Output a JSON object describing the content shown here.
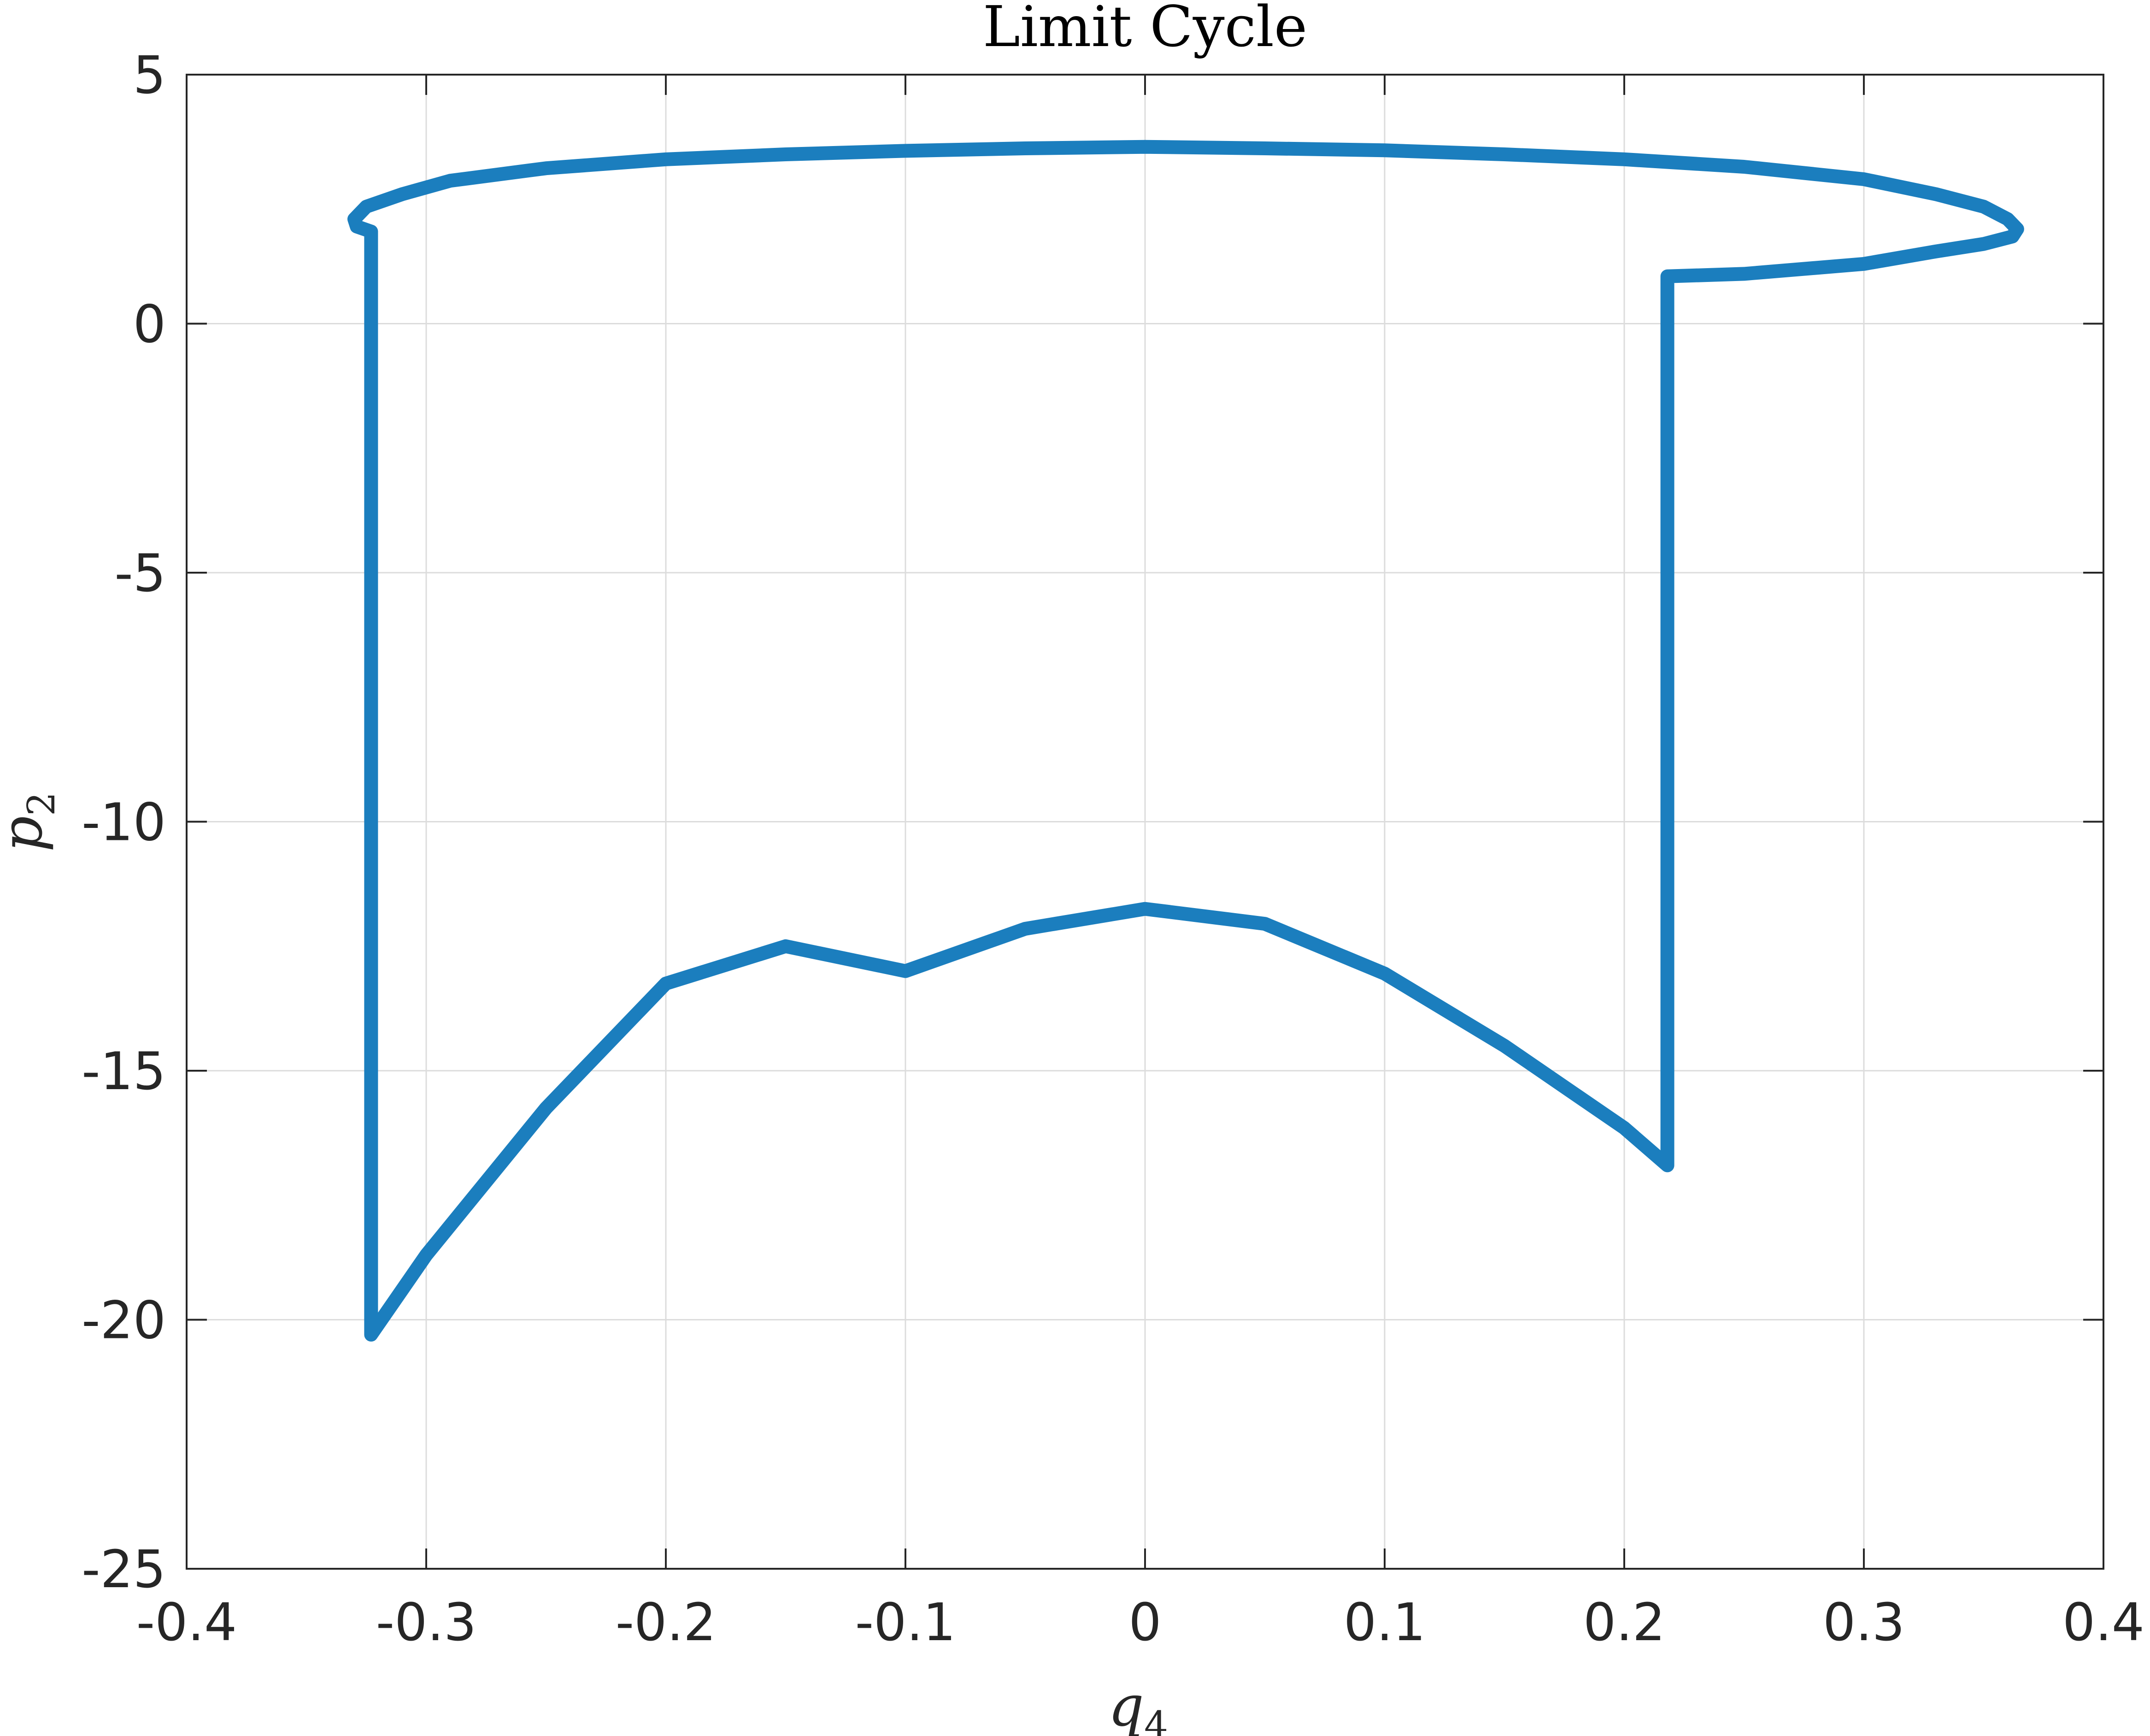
{
  "chart_data": {
    "type": "line",
    "title": "Limit Cycle",
    "xlabel": "q",
    "xlabel_subscript": "4",
    "ylabel": "p",
    "ylabel_subscript": "2",
    "xlim": [
      -0.4,
      0.4
    ],
    "ylim": [
      -25,
      5
    ],
    "xticks": [
      -0.4,
      -0.3,
      -0.2,
      -0.1,
      0,
      0.1,
      0.2,
      0.3,
      0.4
    ],
    "xtick_labels": [
      "-0.4",
      "-0.3",
      "-0.2",
      "-0.1",
      "0",
      "0.1",
      "0.2",
      "0.3",
      "0.4"
    ],
    "yticks": [
      5,
      0,
      -5,
      -10,
      -15,
      -20,
      -25
    ],
    "ytick_labels": [
      "5",
      "0",
      "-5",
      "-10",
      "-15",
      "-20",
      "-25"
    ],
    "grid": true,
    "line_color": "#1b7ebe",
    "grid_color": "#dcdcdc",
    "axis_color": "#262626",
    "series": [
      {
        "x": [
          -0.323,
          -0.323,
          -0.323,
          -0.3,
          -0.25,
          -0.2,
          -0.15,
          -0.1,
          -0.05,
          0.0,
          0.05,
          0.1,
          0.15,
          0.2,
          0.218,
          0.218,
          0.218,
          0.25,
          0.3,
          0.33,
          0.35,
          0.362,
          0.364,
          0.36,
          0.35,
          0.33,
          0.3,
          0.25,
          0.2,
          0.15,
          0.1,
          0.05,
          0.0,
          -0.05,
          -0.1,
          -0.15,
          -0.2,
          -0.25,
          -0.29,
          -0.31,
          -0.325,
          -0.33,
          -0.329,
          -0.323
        ],
        "y": [
          1.85,
          -5.0,
          -20.3,
          -18.7,
          -15.75,
          -13.25,
          -12.5,
          -13.0,
          -12.15,
          -11.75,
          -12.05,
          -13.05,
          -14.5,
          -16.15,
          -16.9,
          -5.0,
          0.95,
          1.0,
          1.2,
          1.45,
          1.6,
          1.75,
          1.9,
          2.1,
          2.35,
          2.6,
          2.9,
          3.15,
          3.3,
          3.4,
          3.48,
          3.52,
          3.55,
          3.52,
          3.47,
          3.4,
          3.3,
          3.12,
          2.87,
          2.6,
          2.35,
          2.1,
          1.95,
          1.85
        ]
      }
    ]
  }
}
